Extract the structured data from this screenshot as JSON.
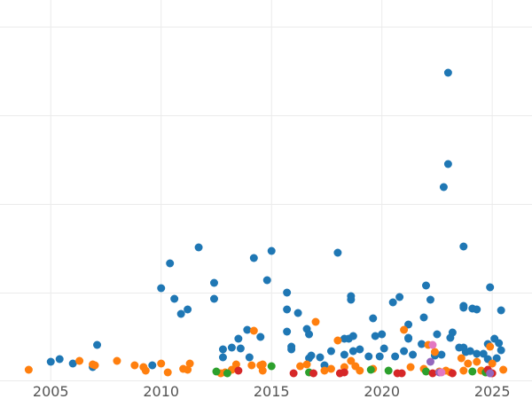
{
  "chart_data": {
    "type": "scatter",
    "title": "",
    "xlabel": "",
    "ylabel": "",
    "xlim": [
      2002.7,
      2026.8
    ],
    "ylim": [
      0,
      430
    ],
    "grid": true,
    "x_ticks": [
      {
        "value": 2005,
        "label": "2005"
      },
      {
        "value": 2010,
        "label": "2010"
      },
      {
        "value": 2015,
        "label": "2015"
      },
      {
        "value": 2020,
        "label": "2020"
      },
      {
        "value": 2025,
        "label": "2025"
      }
    ],
    "y_gridlines": [
      0,
      100,
      200,
      300,
      400
    ],
    "colors": {
      "blue": "#1f77b4",
      "orange": "#ff7f0e",
      "green": "#2ca02c",
      "red": "#d62728",
      "purple": "#9467bd",
      "pink": "#e377c2",
      "gridline": "#ebebeb",
      "tick_text": "#555555"
    },
    "series": [
      {
        "color": "#1f77b4",
        "points": [
          [
            2005.0,
            14
          ],
          [
            2005.4,
            17
          ],
          [
            2006.0,
            12
          ],
          [
            2006.9,
            8
          ],
          [
            2007.1,
            33
          ],
          [
            2009.6,
            10
          ],
          [
            2010.0,
            97
          ],
          [
            2010.4,
            125
          ],
          [
            2010.6,
            85
          ],
          [
            2010.9,
            68
          ],
          [
            2011.2,
            73
          ],
          [
            2011.7,
            143
          ],
          [
            2012.4,
            103
          ],
          [
            2012.4,
            85
          ],
          [
            2012.8,
            28
          ],
          [
            2012.8,
            19
          ],
          [
            2013.2,
            30
          ],
          [
            2013.5,
            40
          ],
          [
            2013.6,
            29
          ],
          [
            2013.9,
            50
          ],
          [
            2014.0,
            19
          ],
          [
            2014.2,
            131
          ],
          [
            2014.5,
            42
          ],
          [
            2014.8,
            106
          ],
          [
            2015.0,
            139
          ],
          [
            2015.7,
            92
          ],
          [
            2015.7,
            73
          ],
          [
            2015.7,
            48
          ],
          [
            2015.9,
            31
          ],
          [
            2015.9,
            28
          ],
          [
            2016.2,
            69
          ],
          [
            2016.6,
            51
          ],
          [
            2016.7,
            45
          ],
          [
            2016.7,
            18
          ],
          [
            2016.8,
            21
          ],
          [
            2017.2,
            19
          ],
          [
            2017.4,
            10
          ],
          [
            2017.7,
            26
          ],
          [
            2018.0,
            137
          ],
          [
            2018.3,
            40
          ],
          [
            2018.3,
            22
          ],
          [
            2018.5,
            40
          ],
          [
            2018.6,
            84
          ],
          [
            2018.6,
            88
          ],
          [
            2018.7,
            43
          ],
          [
            2018.7,
            26
          ],
          [
            2019.0,
            28
          ],
          [
            2019.4,
            20
          ],
          [
            2019.6,
            63
          ],
          [
            2019.7,
            43
          ],
          [
            2019.9,
            20
          ],
          [
            2020.0,
            45
          ],
          [
            2020.1,
            29
          ],
          [
            2020.5,
            81
          ],
          [
            2020.6,
            20
          ],
          [
            2020.8,
            87
          ],
          [
            2021.0,
            26
          ],
          [
            2021.2,
            40
          ],
          [
            2021.2,
            56
          ],
          [
            2021.2,
            41
          ],
          [
            2021.4,
            22
          ],
          [
            2021.8,
            34
          ],
          [
            2021.9,
            64
          ],
          [
            2022.0,
            100
          ],
          [
            2022.2,
            84
          ],
          [
            2022.4,
            21
          ],
          [
            2022.5,
            45
          ],
          [
            2022.7,
            22
          ],
          [
            2022.8,
            211
          ],
          [
            2023.0,
            340
          ],
          [
            2023.0,
            237
          ],
          [
            2023.1,
            41
          ],
          [
            2023.2,
            47
          ],
          [
            2023.5,
            30
          ],
          [
            2023.7,
            144
          ],
          [
            2023.7,
            77
          ],
          [
            2023.7,
            75
          ],
          [
            2023.7,
            30
          ],
          [
            2023.8,
            25
          ],
          [
            2024.0,
            26
          ],
          [
            2024.1,
            74
          ],
          [
            2024.3,
            73
          ],
          [
            2024.3,
            23
          ],
          [
            2024.6,
            23
          ],
          [
            2024.8,
            34
          ],
          [
            2024.8,
            17
          ],
          [
            2024.9,
            98
          ],
          [
            2025.1,
            40
          ],
          [
            2025.2,
            18
          ],
          [
            2025.3,
            35
          ],
          [
            2025.4,
            27
          ],
          [
            2025.4,
            72
          ]
        ]
      },
      {
        "color": "#ff7f0e",
        "points": [
          [
            2004.0,
            5
          ],
          [
            2006.3,
            15
          ],
          [
            2006.9,
            11
          ],
          [
            2007.0,
            10
          ],
          [
            2008.0,
            15
          ],
          [
            2008.8,
            10
          ],
          [
            2009.2,
            8
          ],
          [
            2009.3,
            4
          ],
          [
            2010.0,
            12
          ],
          [
            2010.3,
            2
          ],
          [
            2011.0,
            6
          ],
          [
            2011.2,
            5
          ],
          [
            2011.3,
            12
          ],
          [
            2012.7,
            1
          ],
          [
            2012.9,
            2
          ],
          [
            2013.2,
            5
          ],
          [
            2013.4,
            11
          ],
          [
            2014.1,
            10
          ],
          [
            2014.2,
            49
          ],
          [
            2014.5,
            10
          ],
          [
            2014.6,
            11
          ],
          [
            2014.6,
            4
          ],
          [
            2016.3,
            9
          ],
          [
            2016.6,
            11
          ],
          [
            2017.0,
            59
          ],
          [
            2017.4,
            4
          ],
          [
            2017.7,
            6
          ],
          [
            2018.0,
            38
          ],
          [
            2018.3,
            8
          ],
          [
            2018.6,
            15
          ],
          [
            2018.8,
            9
          ],
          [
            2019.0,
            4
          ],
          [
            2019.6,
            6
          ],
          [
            2021.0,
            50
          ],
          [
            2021.3,
            8
          ],
          [
            2021.9,
            6
          ],
          [
            2022.1,
            33
          ],
          [
            2022.4,
            25
          ],
          [
            2022.6,
            3
          ],
          [
            2022.9,
            4
          ],
          [
            2023.1,
            2
          ],
          [
            2023.6,
            18
          ],
          [
            2023.7,
            4
          ],
          [
            2023.9,
            12
          ],
          [
            2024.3,
            14
          ],
          [
            2024.5,
            4
          ],
          [
            2024.7,
            2
          ],
          [
            2024.9,
            31
          ],
          [
            2025.0,
            12
          ],
          [
            2025.5,
            5
          ]
        ]
      },
      {
        "color": "#2ca02c",
        "points": [
          [
            2012.5,
            3
          ],
          [
            2013.0,
            1
          ],
          [
            2015.0,
            9
          ],
          [
            2016.7,
            2
          ],
          [
            2019.5,
            5
          ],
          [
            2020.3,
            4
          ],
          [
            2022.0,
            3
          ],
          [
            2024.1,
            3
          ],
          [
            2024.7,
            2
          ]
        ]
      },
      {
        "color": "#d62728",
        "points": [
          [
            2013.5,
            4
          ],
          [
            2016.0,
            1
          ],
          [
            2016.9,
            1
          ],
          [
            2018.1,
            1
          ],
          [
            2018.3,
            2
          ],
          [
            2020.7,
            1
          ],
          [
            2020.9,
            1
          ],
          [
            2022.3,
            1
          ],
          [
            2023.2,
            1
          ],
          [
            2024.8,
            5
          ],
          [
            2025.0,
            1
          ]
        ]
      },
      {
        "color": "#9467bd",
        "points": [
          [
            2022.2,
            14
          ],
          [
            2022.6,
            2
          ],
          [
            2024.9,
            1
          ]
        ]
      },
      {
        "color": "#e377c2",
        "points": [
          [
            2022.3,
            33
          ],
          [
            2022.7,
            2
          ]
        ]
      }
    ]
  }
}
